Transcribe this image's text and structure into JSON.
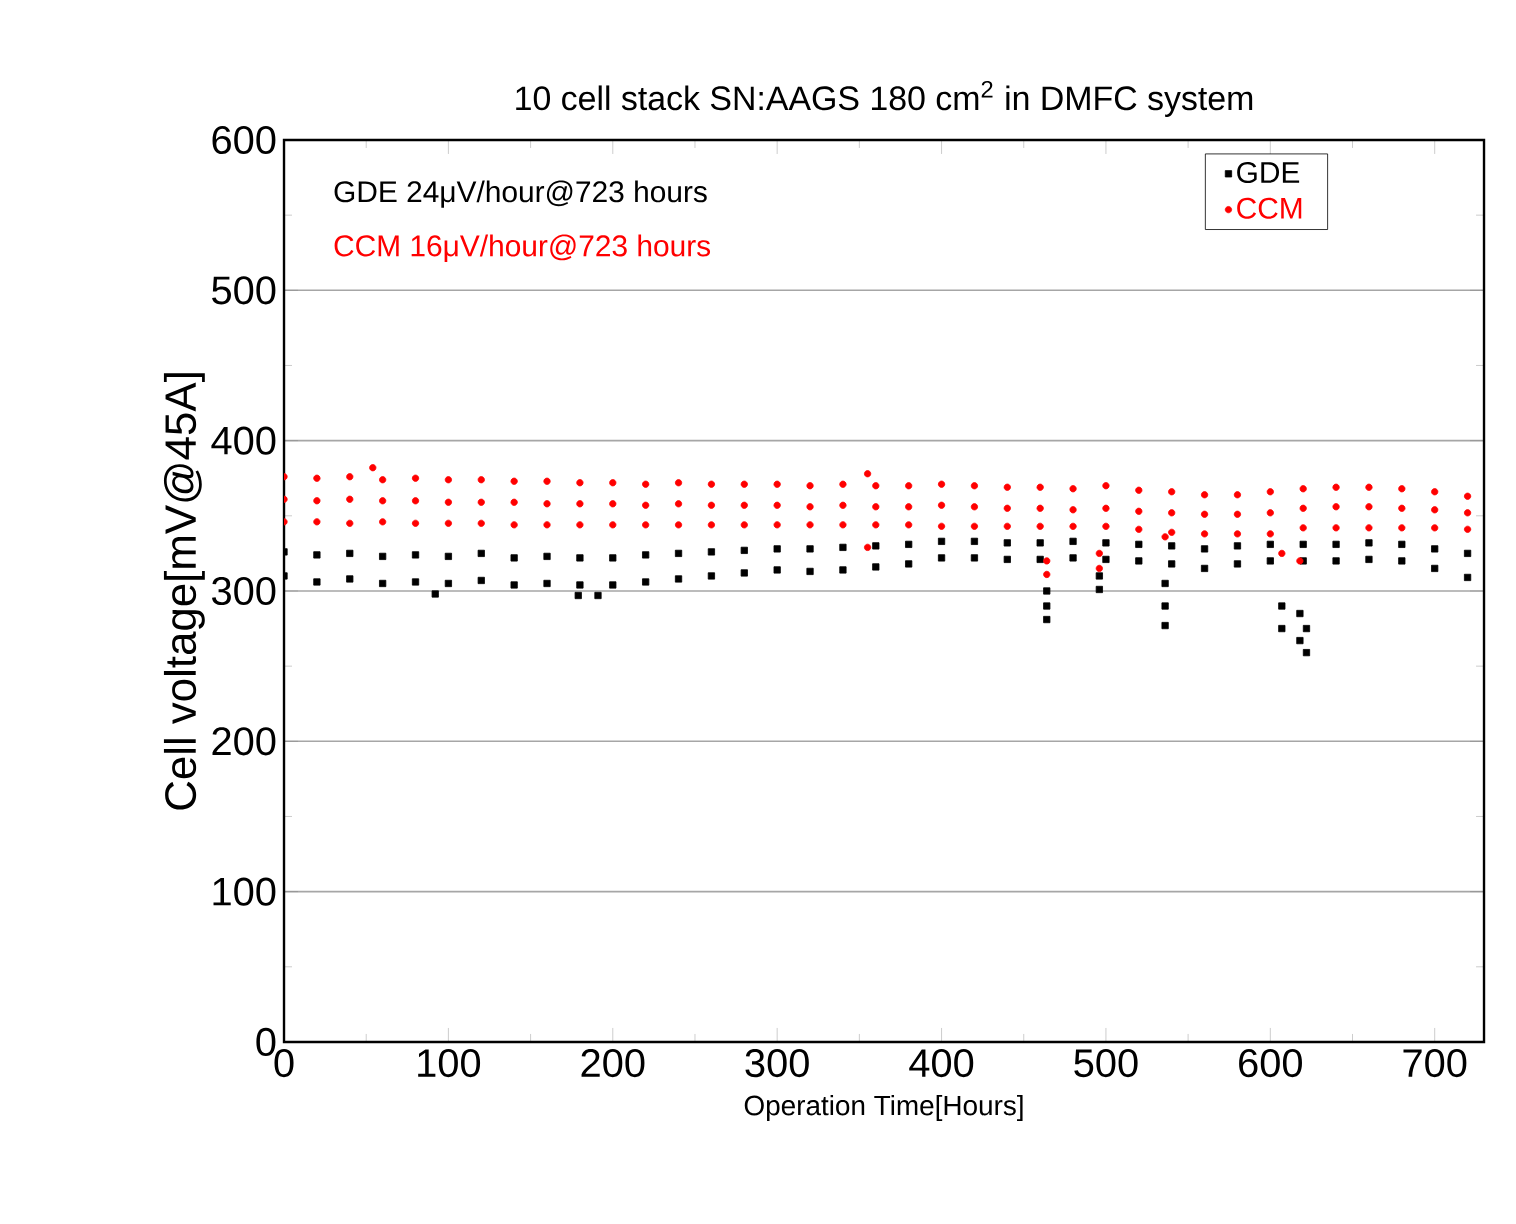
{
  "chart_data": {
    "type": "scatter",
    "title": "10 cell stack SN:AAGS 180 cm$^{2}$ in DMFC system",
    "xlabel": "Operation Time[Hours]",
    "ylabel": "Cell voltage[mV@45A]",
    "annotations": [
      "GDE 24μV/hour@723 hours",
      "CCM 16μV/hour@723 hours"
    ],
    "xlim": [
      0,
      730
    ],
    "xticks": [
      0,
      100,
      200,
      300,
      400,
      500,
      600,
      700
    ],
    "ylim": [
      0,
      600
    ],
    "yticks": [
      0,
      100,
      200,
      300,
      400,
      500,
      600
    ],
    "grid": "y",
    "legend": "top right",
    "series": [
      {
        "name": "GDE",
        "color": "#000000",
        "marker": "square",
        "x": [
          0,
          20,
          40,
          60,
          80,
          100,
          120,
          140,
          160,
          180,
          200,
          220,
          240,
          260,
          280,
          300,
          320,
          340,
          360,
          380,
          400,
          420,
          440,
          460,
          480,
          500,
          520,
          540,
          560,
          580,
          600,
          620,
          640,
          660,
          680,
          700,
          720,
          0,
          20,
          40,
          60,
          80,
          100,
          120,
          140,
          160,
          180,
          200,
          220,
          240,
          260,
          280,
          300,
          320,
          340,
          360,
          380,
          400,
          420,
          440,
          460,
          480,
          500,
          520,
          540,
          560,
          580,
          600,
          620,
          640,
          660,
          680,
          700,
          720,
          92,
          179,
          191,
          464,
          464,
          464,
          496,
          496,
          536,
          536,
          536,
          607,
          607,
          618,
          618,
          622,
          622
        ],
        "values": [
          310,
          306,
          308,
          305,
          306,
          305,
          307,
          304,
          305,
          304,
          304,
          306,
          308,
          310,
          312,
          314,
          313,
          314,
          316,
          318,
          322,
          322,
          321,
          321,
          322,
          321,
          320,
          318,
          315,
          318,
          320,
          320,
          320,
          321,
          320,
          315,
          309,
          326,
          324,
          325,
          323,
          324,
          323,
          325,
          322,
          323,
          322,
          322,
          324,
          325,
          326,
          327,
          328,
          328,
          329,
          330,
          331,
          333,
          333,
          332,
          332,
          333,
          332,
          331,
          330,
          328,
          330,
          331,
          331,
          331,
          332,
          331,
          328,
          325,
          298,
          297,
          297,
          281,
          290,
          300,
          301,
          310,
          277,
          290,
          305,
          275,
          290,
          267,
          285,
          259,
          275
        ]
      },
      {
        "name": "CCM",
        "color": "#ff0000",
        "marker": "circle",
        "x": [
          0,
          20,
          40,
          60,
          80,
          100,
          120,
          140,
          160,
          180,
          200,
          220,
          240,
          260,
          280,
          300,
          320,
          340,
          360,
          380,
          400,
          420,
          440,
          460,
          480,
          500,
          520,
          540,
          560,
          580,
          600,
          620,
          640,
          660,
          680,
          700,
          720,
          0,
          20,
          40,
          60,
          80,
          100,
          120,
          140,
          160,
          180,
          200,
          220,
          240,
          260,
          280,
          300,
          320,
          340,
          360,
          380,
          400,
          420,
          440,
          460,
          480,
          500,
          520,
          540,
          560,
          580,
          600,
          620,
          640,
          660,
          680,
          700,
          720,
          0,
          20,
          40,
          60,
          80,
          100,
          120,
          140,
          160,
          180,
          200,
          220,
          240,
          260,
          280,
          300,
          320,
          340,
          360,
          380,
          400,
          420,
          440,
          460,
          480,
          500,
          520,
          540,
          560,
          580,
          600,
          620,
          640,
          660,
          680,
          700,
          720,
          54,
          355,
          355,
          464,
          464,
          496,
          496,
          536,
          607,
          618
        ],
        "values": [
          376,
          375,
          376,
          374,
          375,
          374,
          374,
          373,
          373,
          372,
          372,
          371,
          372,
          371,
          371,
          371,
          370,
          371,
          370,
          370,
          371,
          370,
          369,
          369,
          368,
          370,
          367,
          366,
          364,
          364,
          366,
          368,
          369,
          369,
          368,
          366,
          363,
          361,
          360,
          361,
          360,
          360,
          359,
          359,
          359,
          358,
          358,
          358,
          357,
          358,
          357,
          357,
          357,
          356,
          357,
          356,
          356,
          357,
          356,
          355,
          355,
          354,
          355,
          353,
          352,
          351,
          351,
          352,
          355,
          356,
          356,
          355,
          354,
          352,
          346,
          346,
          345,
          346,
          345,
          345,
          345,
          344,
          344,
          344,
          344,
          344,
          344,
          344,
          344,
          344,
          344,
          344,
          344,
          344,
          343,
          343,
          343,
          343,
          343,
          343,
          341,
          339,
          338,
          338,
          338,
          342,
          342,
          342,
          342,
          342,
          341,
          382,
          378,
          329,
          311,
          320,
          315,
          325,
          336,
          325,
          320
        ]
      }
    ]
  }
}
